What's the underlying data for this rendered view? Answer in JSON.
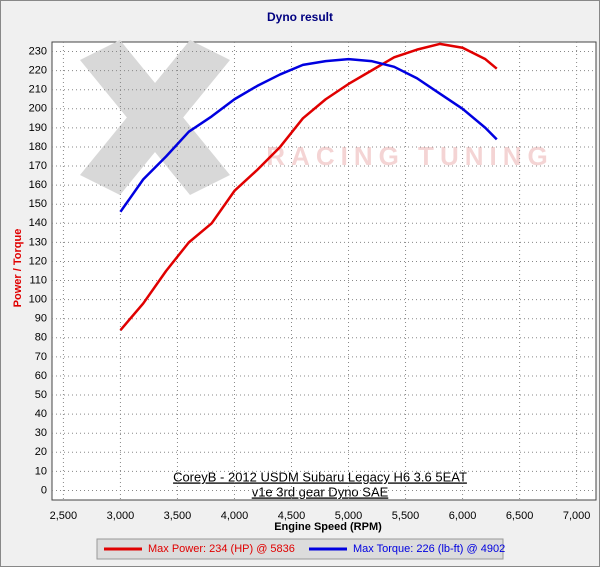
{
  "chart_data": {
    "type": "line",
    "title": "Dyno result",
    "x_label": "Engine Speed (RPM)",
    "y_label": "Power / Torque",
    "annotations": [
      "CoreyB - 2012 USDM Subaru Legacy H6 3.6 5EAT",
      "v1e 3rd gear Dyno SAE"
    ],
    "watermark": "RACING TUNING",
    "x": [
      3000,
      3200,
      3400,
      3600,
      3800,
      4000,
      4200,
      4400,
      4600,
      4800,
      5000,
      5200,
      5400,
      5600,
      5800,
      6000,
      6200,
      6300
    ],
    "series": [
      {
        "name": "Max Power: 234 (HP) @ 5836",
        "color": "#e00000",
        "values": [
          84,
          98,
          115,
          130,
          140,
          157,
          168,
          180,
          195,
          205,
          213,
          220,
          227,
          231,
          234,
          232,
          226,
          221
        ]
      },
      {
        "name": "Max Torque: 226 (lb-ft) @ 4902",
        "color": "#0000e0",
        "values": [
          146,
          163,
          175,
          188,
          196,
          205,
          212,
          218,
          223,
          225,
          226,
          225,
          222,
          216,
          208,
          200,
          190,
          184
        ]
      }
    ],
    "xlim": [
      2400,
      7170
    ],
    "ylim": [
      -5,
      235
    ],
    "xticks": [
      {
        "value": 2500,
        "label": "2,500"
      },
      {
        "value": 3000,
        "label": "3,000"
      },
      {
        "value": 3500,
        "label": "3,500"
      },
      {
        "value": 4000,
        "label": "4,000"
      },
      {
        "value": 4500,
        "label": "4,500"
      },
      {
        "value": 5000,
        "label": "5,000"
      },
      {
        "value": 5500,
        "label": "5,500"
      },
      {
        "value": 6000,
        "label": "6,000"
      },
      {
        "value": 6500,
        "label": "6,500"
      },
      {
        "value": 7000,
        "label": "7,000"
      }
    ],
    "yticks": [
      0,
      10,
      20,
      30,
      40,
      50,
      60,
      70,
      80,
      90,
      100,
      110,
      120,
      130,
      140,
      150,
      160,
      170,
      180,
      190,
      200,
      210,
      220,
      230
    ],
    "grid": true
  }
}
